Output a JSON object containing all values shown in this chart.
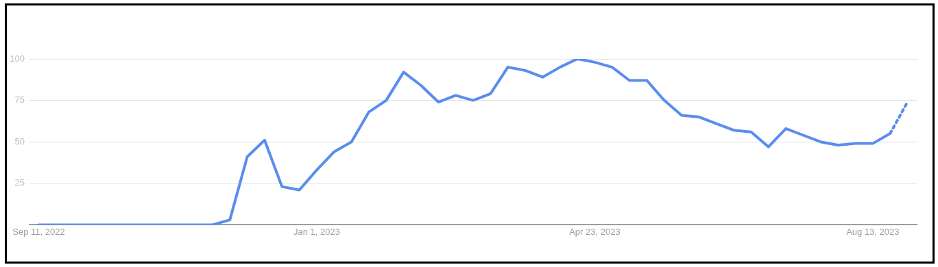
{
  "chart_data": {
    "type": "line",
    "x": [
      "2022-09-11",
      "2022-09-18",
      "2022-09-25",
      "2022-10-02",
      "2022-10-09",
      "2022-10-16",
      "2022-10-23",
      "2022-10-30",
      "2022-11-06",
      "2022-11-13",
      "2022-11-20",
      "2022-11-27",
      "2022-12-04",
      "2022-12-11",
      "2022-12-18",
      "2022-12-25",
      "2023-01-01",
      "2023-01-08",
      "2023-01-15",
      "2023-01-22",
      "2023-01-29",
      "2023-02-05",
      "2023-02-12",
      "2023-02-19",
      "2023-02-26",
      "2023-03-05",
      "2023-03-12",
      "2023-03-19",
      "2023-03-26",
      "2023-04-02",
      "2023-04-09",
      "2023-04-16",
      "2023-04-23",
      "2023-04-30",
      "2023-05-07",
      "2023-05-14",
      "2023-05-21",
      "2023-05-28",
      "2023-06-04",
      "2023-06-11",
      "2023-06-18",
      "2023-06-25",
      "2023-07-02",
      "2023-07-09",
      "2023-07-16",
      "2023-07-23",
      "2023-07-30",
      "2023-08-06",
      "2023-08-13",
      "2023-08-20",
      "2023-08-27"
    ],
    "series": [
      {
        "color": "#5a8ded",
        "line_style": "solid",
        "values": [
          0,
          0,
          0,
          0,
          0,
          0,
          0,
          0,
          0,
          0,
          0,
          3,
          41,
          51,
          23,
          21,
          33,
          44,
          50,
          68,
          75,
          92,
          84,
          74,
          78,
          75,
          79,
          95,
          93,
          89,
          95,
          100,
          98,
          95,
          87,
          87,
          75,
          66,
          65,
          61,
          57,
          56,
          47,
          58,
          54,
          50,
          48,
          49,
          49,
          55,
          null
        ]
      },
      {
        "color": "#5a8ded",
        "line_style": "dotted",
        "values": [
          null,
          null,
          null,
          null,
          null,
          null,
          null,
          null,
          null,
          null,
          null,
          null,
          null,
          null,
          null,
          null,
          null,
          null,
          null,
          null,
          null,
          null,
          null,
          null,
          null,
          null,
          null,
          null,
          null,
          null,
          null,
          null,
          null,
          null,
          null,
          null,
          null,
          null,
          null,
          null,
          null,
          null,
          null,
          null,
          null,
          null,
          null,
          null,
          null,
          55,
          74
        ]
      }
    ],
    "xlim": [
      "2022-09-07",
      "2023-08-31"
    ],
    "xticks": [
      {
        "value": "2022-09-11",
        "label": "Sep 11, 2022"
      },
      {
        "value": "2023-01-01",
        "label": "Jan 1, 2023"
      },
      {
        "value": "2023-04-23",
        "label": "Apr 23, 2023"
      },
      {
        "value": "2023-08-13",
        "label": "Aug 13, 2023"
      }
    ],
    "ylim": [
      0,
      100
    ],
    "yticks": [
      {
        "value": 0,
        "label": null
      },
      25,
      50,
      75,
      100
    ],
    "grid": "y",
    "marker": "none"
  }
}
